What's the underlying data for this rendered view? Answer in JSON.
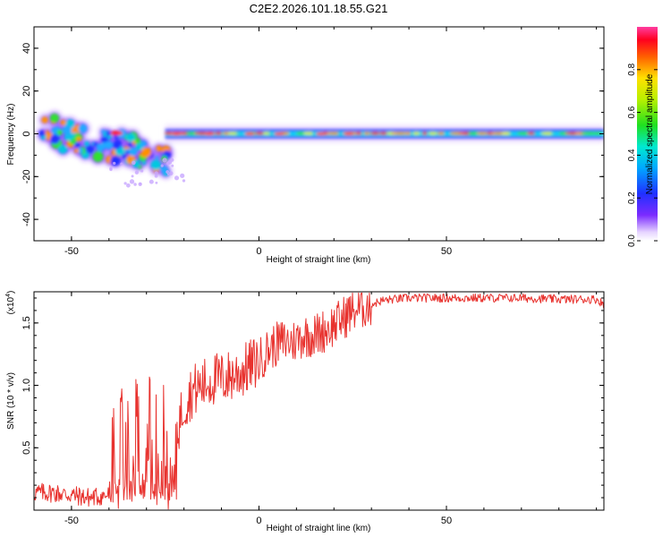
{
  "title": "C2E2.2026.101.18.55.G21",
  "chart_data": [
    {
      "type": "heatmap",
      "name": "spectrogram",
      "xlabel": "Height of straight line (km)",
      "ylabel": "Frequency (Hz)",
      "xlim": [
        -60,
        92
      ],
      "ylim": [
        -50,
        50
      ],
      "x_ticks": [
        "-50",
        "0",
        "50"
      ],
      "y_ticks": [
        "-40",
        "-20",
        "0",
        "20",
        "40"
      ],
      "colorbar": {
        "label": "Normalized spectral amplitude",
        "range": [
          0,
          1
        ],
        "ticks": [
          "0.0",
          "0.2",
          "0.4",
          "0.6",
          "0.8"
        ]
      },
      "dominant_frequency_hz": 0,
      "scatter_region_km": [
        -58,
        -25
      ],
      "scatter_frequency_range_hz": [
        -24,
        5
      ]
    },
    {
      "type": "line",
      "name": "snr",
      "xlabel": "Height of straight line (km)",
      "ylabel": "SNR (10 * v/v)",
      "scale_label": "(x10^4)",
      "scale_base": "(x10",
      "scale_exp": "4",
      "xlim": [
        -60,
        92
      ],
      "ylim": [
        0,
        1.75
      ],
      "x_ticks": [
        "-50",
        "0",
        "50"
      ],
      "y_ticks": [
        "0.5",
        "1.0",
        "1.5"
      ],
      "color": "#e8322e",
      "x": [
        -60,
        -55,
        -50,
        -45,
        -40,
        -38,
        -36,
        -34,
        -32,
        -30,
        -28,
        -26,
        -24,
        -22,
        -20,
        -18,
        -15,
        -12,
        -10,
        -7,
        -4,
        0,
        3,
        6,
        9,
        12,
        15,
        18,
        21,
        24,
        27,
        30,
        33,
        36,
        40,
        45,
        50,
        55,
        60,
        70,
        80,
        90,
        92
      ],
      "y": [
        0.14,
        0.14,
        0.12,
        0.1,
        0.12,
        0.5,
        0.6,
        0.62,
        0.58,
        0.62,
        0.62,
        0.55,
        0.55,
        0.62,
        0.85,
        0.95,
        1.0,
        1.05,
        1.05,
        1.08,
        1.12,
        1.2,
        1.3,
        1.35,
        1.35,
        1.4,
        1.4,
        1.45,
        1.5,
        1.58,
        1.62,
        1.65,
        1.68,
        1.69,
        1.7,
        1.7,
        1.7,
        1.7,
        1.7,
        1.7,
        1.69,
        1.69,
        1.65
      ]
    }
  ]
}
